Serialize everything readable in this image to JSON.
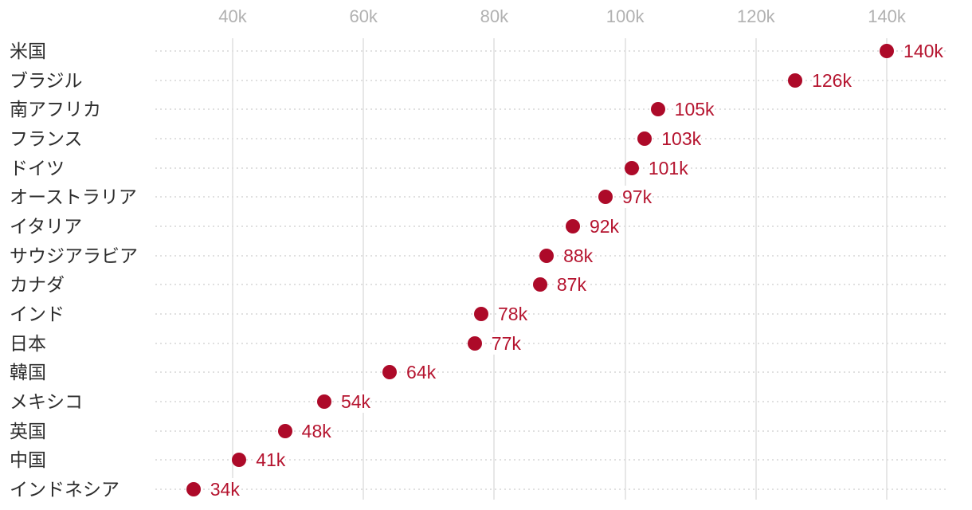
{
  "chart_data": {
    "type": "scatter",
    "subtype": "horizontal-dot-plot",
    "title": "",
    "legend": "none",
    "grid": "vertical-solid + horizontal-dotted",
    "categories": [
      "米国",
      "ブラジル",
      "南アフリカ",
      "フランス",
      "ドイツ",
      "オーストラリア",
      "イタリア",
      "サウジアラビア",
      "カナダ",
      "インド",
      "日本",
      "韓国",
      "メキシコ",
      "英国",
      "中国",
      "インドネシア"
    ],
    "values": [
      140,
      126,
      105,
      103,
      101,
      97,
      92,
      88,
      87,
      78,
      77,
      64,
      54,
      48,
      41,
      34
    ],
    "value_labels": [
      "140k",
      "126k",
      "105k",
      "103k",
      "101k",
      "97k",
      "92k",
      "88k",
      "87k",
      "78k",
      "77k",
      "64k",
      "54k",
      "48k",
      "41k",
      "34k"
    ],
    "value_unit": "k",
    "xlabel": "",
    "ylabel": "",
    "xticks": {
      "values": [
        40,
        60,
        80,
        100,
        120,
        140
      ],
      "labels": [
        "40k",
        "60k",
        "80k",
        "100k",
        "120k",
        "140k"
      ]
    },
    "xlim": [
      28,
      149
    ],
    "colors": {
      "dot": "#ad0a29",
      "value_label": "#b5142f",
      "axis_tick": "#b1b1b1",
      "category_label": "#2d2d2d",
      "gridline_vertical": "#e7e7e7",
      "gridline_dotted": "#e0e0e0",
      "background": "#ffffff"
    }
  }
}
